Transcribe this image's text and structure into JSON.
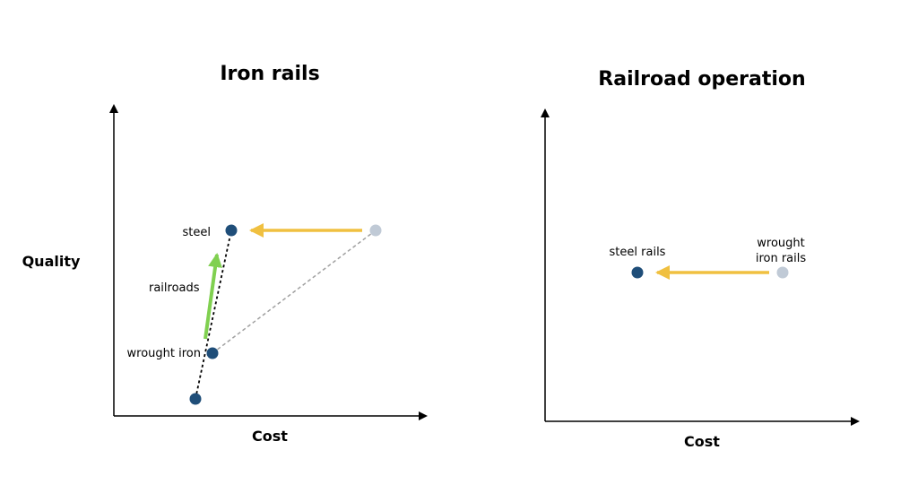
{
  "left_panel": {
    "title": "Iron rails",
    "y_axis_label": "Quality",
    "x_axis_label": "Cost",
    "labels": {
      "steel": "steel",
      "railroads": "railroads",
      "wrought_iron": "wrought iron"
    }
  },
  "right_panel": {
    "title": "Railroad operation",
    "x_axis_label": "Cost",
    "labels": {
      "steel_rails": "steel rails",
      "wrought_iron_rails_line1": "wrought",
      "wrought_iron_rails_line2": "iron rails"
    }
  },
  "colors": {
    "point_dark": "#1f4e79",
    "point_light": "#c0cad6",
    "arrow_orange": "#f0c040",
    "arrow_green": "#80d050",
    "dashed_gray": "#a0a0a0",
    "axis": "#000000"
  }
}
